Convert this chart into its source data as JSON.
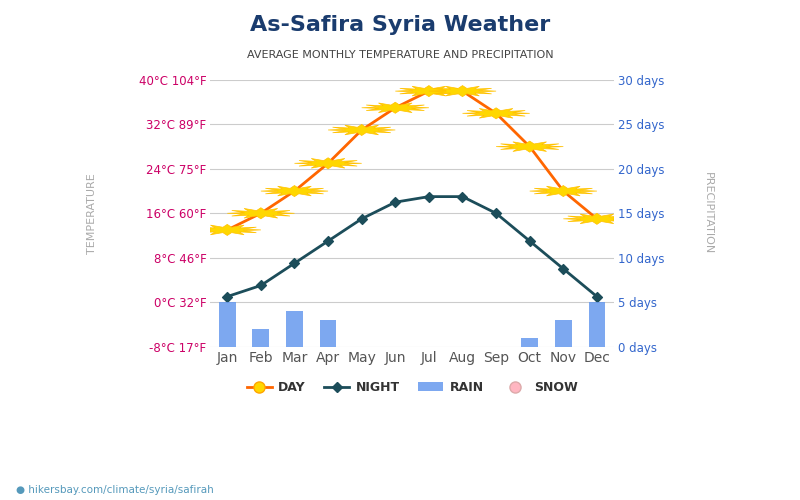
{
  "title": "As-Safira Syria Weather",
  "subtitle": "AVERAGE MONTHLY TEMPERATURE AND PRECIPITATION",
  "months": [
    "Jan",
    "Feb",
    "Mar",
    "Apr",
    "May",
    "Jun",
    "Jul",
    "Aug",
    "Sep",
    "Oct",
    "Nov",
    "Dec"
  ],
  "day_temps": [
    13,
    16,
    20,
    25,
    31,
    35,
    38,
    38,
    34,
    28,
    20,
    15
  ],
  "night_temps": [
    1,
    3,
    7,
    11,
    15,
    18,
    19,
    19,
    16,
    11,
    6,
    1
  ],
  "rain_days": [
    5,
    2,
    4,
    3,
    0,
    0,
    0,
    0,
    0,
    1,
    3,
    5
  ],
  "ylim_temp": [
    -8,
    40
  ],
  "ylim_precip": [
    0,
    30
  ],
  "yticks_temp": [
    -8,
    0,
    8,
    16,
    24,
    32,
    40
  ],
  "ytick_labels_left": [
    "-8°C 17°F",
    "0°C 32°F",
    "8°C 46°F",
    "16°C 60°F",
    "24°C 75°F",
    "32°C 89°F",
    "40°C 104°F"
  ],
  "ytick_labels_right": [
    "0 days",
    "5 days",
    "10 days",
    "15 days",
    "20 days",
    "25 days",
    "30 days"
  ],
  "day_color": "#FF6600",
  "night_color": "#1C4D5A",
  "bar_color": "#6699EE",
  "snow_color": "#FFB6C1",
  "title_color": "#1a3c6e",
  "subtitle_color": "#444444",
  "left_label_color": "#cc0066",
  "right_label_color": "#3366cc",
  "grid_color": "#cccccc",
  "bg_color": "#ffffff",
  "watermark": "hikersbay.com/climate/syria/safirah",
  "legend_day_label": "DAY",
  "legend_night_label": "NIGHT",
  "legend_rain_label": "RAIN",
  "legend_snow_label": "SNOW"
}
